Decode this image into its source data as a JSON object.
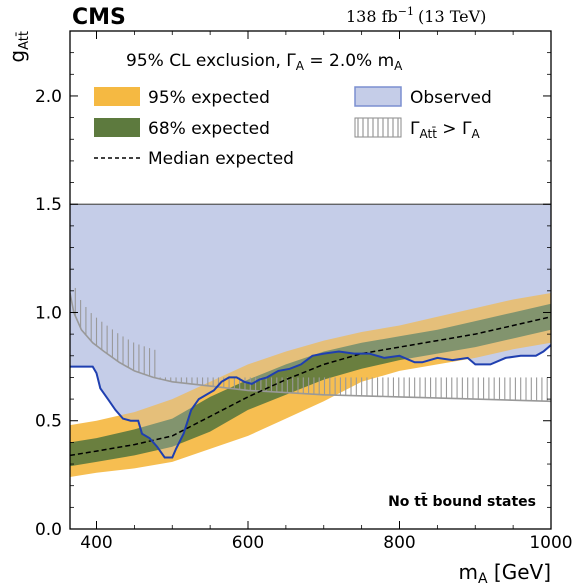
{
  "header": {
    "experiment": "CMS",
    "lumi": "138 fb",
    "lumi_exp": "−1",
    "energy": "(13 TeV)"
  },
  "legend": {
    "title": "95% CL exclusion, Γ",
    "title_sub": "A",
    "title_rest": " =  2.0% m",
    "title_sub2": "A",
    "items": {
      "exp95": "95% expected",
      "exp68": "68% expected",
      "median": "Median expected",
      "observed": "Observed",
      "width_main": "Γ",
      "width_sub": "Att̄",
      "width_rest": " > Γ",
      "width_sub2": "A"
    }
  },
  "annotation": "No tt̄ bound states",
  "chart_data": {
    "type": "area",
    "xlabel_main": "m",
    "xlabel_sub": "A",
    "xlabel_rest": " [GeV]",
    "ylabel_main": "g",
    "ylabel_sub": "Att̄",
    "xlim": [
      365,
      1000
    ],
    "ylim": [
      0,
      2.3
    ],
    "x_ticks": [
      400,
      600,
      800,
      1000
    ],
    "y_ticks": [
      0.0,
      0.5,
      1.0,
      1.5,
      2.0
    ],
    "y_tick_labels": [
      "0.0",
      "0.5",
      "1.0",
      "1.5",
      "2.0"
    ],
    "y_cap": 1.5,
    "colors": {
      "band95": "#f5b942",
      "band68": "#5d7a3e",
      "observed_fill": "#c5cde8",
      "observed_line": "#1f3fb0",
      "width_line": "#999999",
      "median": "#000000"
    },
    "median": {
      "x": [
        365,
        400,
        450,
        500,
        550,
        600,
        650,
        700,
        750,
        800,
        850,
        900,
        950,
        1000
      ],
      "y": [
        0.34,
        0.36,
        0.39,
        0.43,
        0.52,
        0.61,
        0.69,
        0.76,
        0.81,
        0.84,
        0.87,
        0.9,
        0.94,
        0.98
      ]
    },
    "band68": {
      "x": [
        365,
        400,
        450,
        500,
        550,
        600,
        650,
        700,
        750,
        800,
        850,
        900,
        950,
        1000
      ],
      "lo": [
        0.29,
        0.31,
        0.34,
        0.38,
        0.45,
        0.55,
        0.62,
        0.69,
        0.74,
        0.78,
        0.81,
        0.84,
        0.88,
        0.92
      ],
      "hi": [
        0.4,
        0.42,
        0.46,
        0.51,
        0.61,
        0.69,
        0.76,
        0.82,
        0.86,
        0.89,
        0.92,
        0.96,
        1.0,
        1.04
      ]
    },
    "band95": {
      "x": [
        365,
        400,
        450,
        500,
        550,
        600,
        650,
        700,
        750,
        800,
        850,
        900,
        950,
        1000
      ],
      "lo": [
        0.24,
        0.26,
        0.28,
        0.31,
        0.37,
        0.43,
        0.51,
        0.59,
        0.68,
        0.73,
        0.76,
        0.79,
        0.83,
        0.86
      ],
      "hi": [
        0.48,
        0.5,
        0.54,
        0.6,
        0.68,
        0.76,
        0.82,
        0.87,
        0.91,
        0.94,
        0.98,
        1.02,
        1.06,
        1.09
      ]
    },
    "observed": {
      "x": [
        365,
        395,
        400,
        405,
        415,
        425,
        435,
        445,
        455,
        460,
        470,
        480,
        490,
        500,
        505,
        515,
        525,
        535,
        545,
        555,
        565,
        575,
        585,
        595,
        605,
        615,
        625,
        640,
        655,
        670,
        685,
        700,
        720,
        740,
        760,
        780,
        800,
        820,
        830,
        850,
        870,
        890,
        900,
        920,
        940,
        960,
        980,
        990,
        1000
      ],
      "y": [
        0.75,
        0.75,
        0.72,
        0.65,
        0.6,
        0.55,
        0.51,
        0.5,
        0.5,
        0.44,
        0.42,
        0.38,
        0.33,
        0.33,
        0.37,
        0.44,
        0.55,
        0.6,
        0.62,
        0.64,
        0.68,
        0.7,
        0.7,
        0.68,
        0.67,
        0.69,
        0.7,
        0.73,
        0.74,
        0.76,
        0.8,
        0.81,
        0.82,
        0.81,
        0.81,
        0.79,
        0.8,
        0.77,
        0.77,
        0.79,
        0.78,
        0.79,
        0.76,
        0.76,
        0.79,
        0.8,
        0.8,
        0.82,
        0.85
      ]
    },
    "width_boundary": {
      "x": [
        365,
        370,
        380,
        395,
        410,
        430,
        450,
        475,
        500,
        550,
        600,
        650,
        700,
        800,
        900,
        1000
      ],
      "y": [
        1.09,
        1.0,
        0.92,
        0.86,
        0.82,
        0.77,
        0.73,
        0.7,
        0.68,
        0.66,
        0.64,
        0.63,
        0.62,
        0.61,
        0.6,
        0.59
      ]
    },
    "width_hatch_top": 0.7
  }
}
